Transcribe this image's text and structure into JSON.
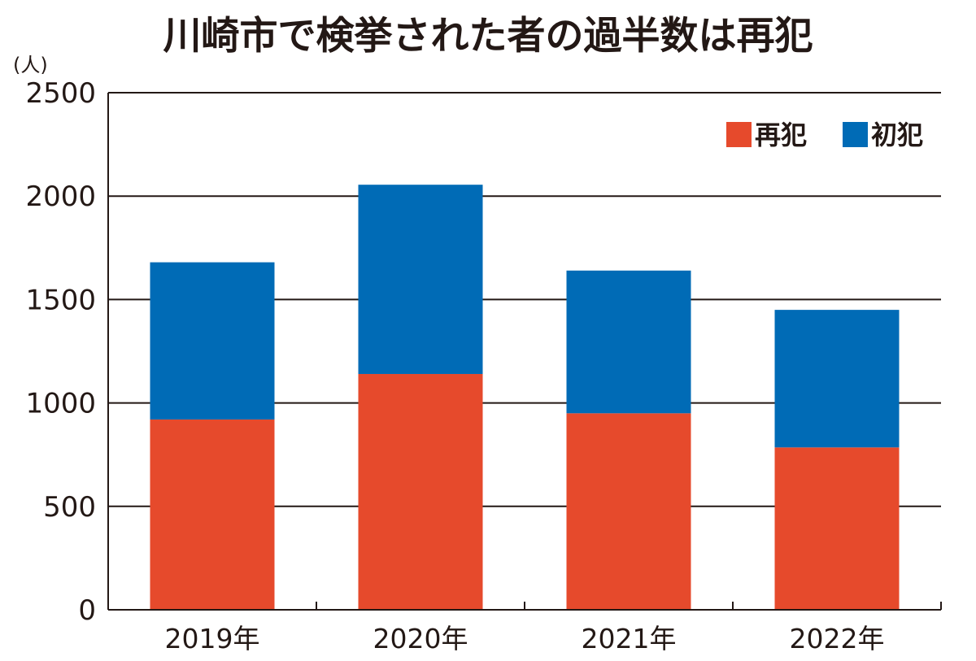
{
  "chart_data": {
    "type": "bar",
    "stacked": true,
    "title": "川崎市で検挙された者の過半数は再犯",
    "ylabel": "(人)",
    "xlabel": "",
    "categories": [
      "2019年",
      "2020年",
      "2021年",
      "2022年"
    ],
    "series": [
      {
        "name": "再犯",
        "color": "#e64a2c",
        "values": [
          920,
          1140,
          950,
          785
        ]
      },
      {
        "name": "初犯",
        "color": "#006bb6",
        "values": [
          760,
          915,
          690,
          665
        ]
      }
    ],
    "ylim": [
      0,
      2500
    ],
    "yticks": [
      "0",
      "500",
      "1000",
      "1500",
      "2000",
      "2500"
    ],
    "ytick_values": [
      0,
      500,
      1000,
      1500,
      2000,
      2500
    ],
    "grid": true,
    "legend": "top-right"
  }
}
